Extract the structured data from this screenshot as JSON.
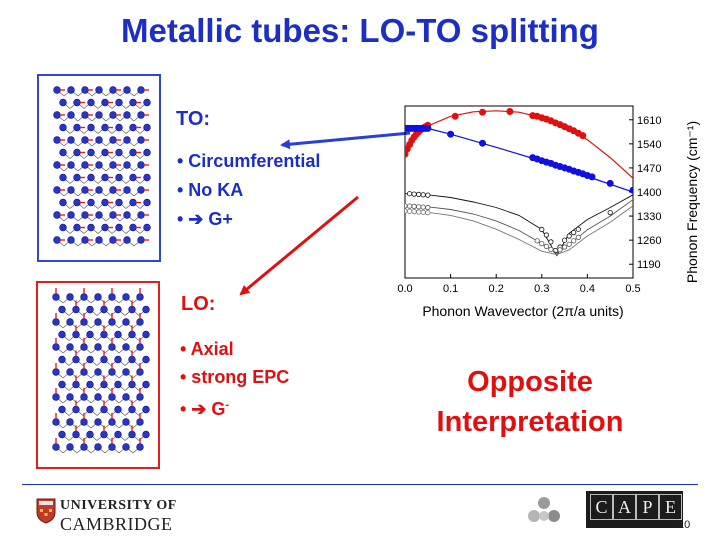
{
  "title": "Metallic tubes: LO-TO splitting",
  "to": {
    "label": "TO:",
    "bullets": [
      "• Circumferential",
      "• No KA",
      "• ➔ G+"
    ]
  },
  "lo": {
    "label": "LO:",
    "bullets": [
      "• Axial",
      "• strong EPC"
    ],
    "g_bullet_prefix": "• ➔ G",
    "g_bullet_sup": "-"
  },
  "conclusion": {
    "line1": "Opposite",
    "line2": "Interpretation"
  },
  "footer": {
    "university_line1": "UNIVERSITY OF",
    "university_line2": "CAMBRIDGE",
    "cape_letters": [
      "C",
      "A",
      "P",
      "E"
    ],
    "page_number": "10"
  },
  "colors": {
    "title_blue": "#1c2ec4",
    "red": "#e01010",
    "blue_series": "#1010e0"
  },
  "chart_data": {
    "type": "scatter",
    "xlabel": "Phonon Wavevector (2π/a units)",
    "ylabel": "Phonon Frequency (cm⁻¹)",
    "xlim": [
      0,
      0.5
    ],
    "ylim": [
      1150,
      1650
    ],
    "x_ticks": [
      "0.0",
      "0.1",
      "0.2",
      "0.3",
      "0.4",
      "0.5"
    ],
    "y_ticks": [
      "1610",
      "1540",
      "1470",
      "1400",
      "1330",
      "1260",
      "1190"
    ],
    "y_tick_values": [
      1610,
      1540,
      1470,
      1400,
      1330,
      1260,
      1190
    ],
    "series": [
      {
        "color": "#e01010",
        "line": [
          [
            0,
            1510
          ],
          [
            0.02,
            1560
          ],
          [
            0.05,
            1592
          ],
          [
            0.1,
            1620
          ],
          [
            0.15,
            1633
          ],
          [
            0.2,
            1636
          ],
          [
            0.25,
            1632
          ],
          [
            0.3,
            1616
          ],
          [
            0.35,
            1592
          ],
          [
            0.4,
            1552
          ],
          [
            0.45,
            1500
          ],
          [
            0.5,
            1440
          ]
        ],
        "points": [
          [
            0.0,
            1510
          ],
          [
            0.005,
            1525
          ],
          [
            0.01,
            1538
          ],
          [
            0.015,
            1550
          ],
          [
            0.02,
            1560
          ],
          [
            0.025,
            1568
          ],
          [
            0.03,
            1575
          ],
          [
            0.035,
            1581
          ],
          [
            0.04,
            1586
          ],
          [
            0.045,
            1590
          ],
          [
            0.05,
            1594
          ],
          [
            0.11,
            1620
          ],
          [
            0.17,
            1632
          ],
          [
            0.23,
            1634
          ],
          [
            0.28,
            1622
          ],
          [
            0.29,
            1620
          ],
          [
            0.3,
            1616
          ],
          [
            0.31,
            1612
          ],
          [
            0.32,
            1607
          ],
          [
            0.33,
            1601
          ],
          [
            0.34,
            1596
          ],
          [
            0.35,
            1590
          ],
          [
            0.36,
            1584
          ],
          [
            0.37,
            1578
          ],
          [
            0.38,
            1571
          ],
          [
            0.39,
            1564
          ]
        ]
      },
      {
        "color": "#1010e0",
        "line": [
          [
            0,
            1585
          ],
          [
            0.05,
            1585
          ],
          [
            0.1,
            1568
          ],
          [
            0.2,
            1530
          ],
          [
            0.3,
            1490
          ],
          [
            0.4,
            1445
          ],
          [
            0.5,
            1400
          ]
        ],
        "points": [
          [
            0.0,
            1585
          ],
          [
            0.005,
            1585
          ],
          [
            0.01,
            1585
          ],
          [
            0.015,
            1585
          ],
          [
            0.02,
            1585
          ],
          [
            0.025,
            1585
          ],
          [
            0.03,
            1585
          ],
          [
            0.035,
            1585
          ],
          [
            0.04,
            1585
          ],
          [
            0.045,
            1585
          ],
          [
            0.05,
            1585
          ],
          [
            0.1,
            1568
          ],
          [
            0.17,
            1542
          ],
          [
            0.28,
            1500
          ],
          [
            0.29,
            1496
          ],
          [
            0.3,
            1491
          ],
          [
            0.31,
            1487
          ],
          [
            0.32,
            1483
          ],
          [
            0.33,
            1478
          ],
          [
            0.34,
            1474
          ],
          [
            0.35,
            1470
          ],
          [
            0.36,
            1466
          ],
          [
            0.37,
            1461
          ],
          [
            0.38,
            1457
          ],
          [
            0.39,
            1453
          ],
          [
            0.4,
            1448
          ],
          [
            0.41,
            1444
          ],
          [
            0.45,
            1425
          ],
          [
            0.5,
            1405
          ]
        ]
      },
      {
        "color": "#111111",
        "line": [
          [
            0,
            1395
          ],
          [
            0.05,
            1392
          ],
          [
            0.1,
            1384
          ],
          [
            0.15,
            1371
          ],
          [
            0.2,
            1355
          ],
          [
            0.25,
            1332
          ],
          [
            0.3,
            1291
          ],
          [
            0.333,
            1215
          ],
          [
            0.36,
            1280
          ],
          [
            0.4,
            1320
          ],
          [
            0.45,
            1355
          ],
          [
            0.5,
            1392
          ]
        ],
        "points": [
          [
            0.01,
            1395
          ],
          [
            0.02,
            1394
          ],
          [
            0.03,
            1393
          ],
          [
            0.04,
            1392
          ],
          [
            0.05,
            1391
          ],
          [
            0.3,
            1291
          ],
          [
            0.31,
            1275
          ],
          [
            0.32,
            1255
          ],
          [
            0.33,
            1230
          ],
          [
            0.34,
            1240
          ],
          [
            0.35,
            1260
          ],
          [
            0.36,
            1272
          ],
          [
            0.37,
            1282
          ],
          [
            0.38,
            1292
          ],
          [
            0.45,
            1340
          ]
        ]
      },
      {
        "color": "#555555",
        "line": [
          [
            0,
            1360
          ],
          [
            0.05,
            1357
          ],
          [
            0.1,
            1349
          ],
          [
            0.15,
            1336
          ],
          [
            0.2,
            1316
          ],
          [
            0.25,
            1288
          ],
          [
            0.3,
            1250
          ],
          [
            0.333,
            1222
          ],
          [
            0.36,
            1248
          ],
          [
            0.4,
            1290
          ],
          [
            0.45,
            1330
          ],
          [
            0.5,
            1378
          ]
        ],
        "points": [
          [
            0.0,
            1360
          ],
          [
            0.01,
            1359
          ],
          [
            0.02,
            1358
          ],
          [
            0.03,
            1357
          ],
          [
            0.04,
            1356
          ],
          [
            0.05,
            1355
          ],
          [
            0.29,
            1258
          ],
          [
            0.3,
            1250
          ],
          [
            0.31,
            1242
          ],
          [
            0.32,
            1233
          ],
          [
            0.34,
            1232
          ],
          [
            0.35,
            1240
          ],
          [
            0.36,
            1248
          ],
          [
            0.37,
            1258
          ],
          [
            0.38,
            1268
          ]
        ]
      },
      {
        "color": "#777777",
        "line": [
          [
            0,
            1345
          ],
          [
            0.05,
            1341
          ],
          [
            0.1,
            1332
          ],
          [
            0.15,
            1316
          ],
          [
            0.2,
            1292
          ],
          [
            0.25,
            1262
          ],
          [
            0.3,
            1228
          ],
          [
            0.333,
            1218
          ],
          [
            0.36,
            1232
          ],
          [
            0.4,
            1272
          ],
          [
            0.45,
            1312
          ],
          [
            0.5,
            1360
          ]
        ],
        "points": [
          [
            0.0,
            1345
          ],
          [
            0.01,
            1344
          ],
          [
            0.02,
            1343
          ],
          [
            0.03,
            1342
          ],
          [
            0.04,
            1341
          ],
          [
            0.05,
            1340
          ]
        ]
      }
    ]
  }
}
